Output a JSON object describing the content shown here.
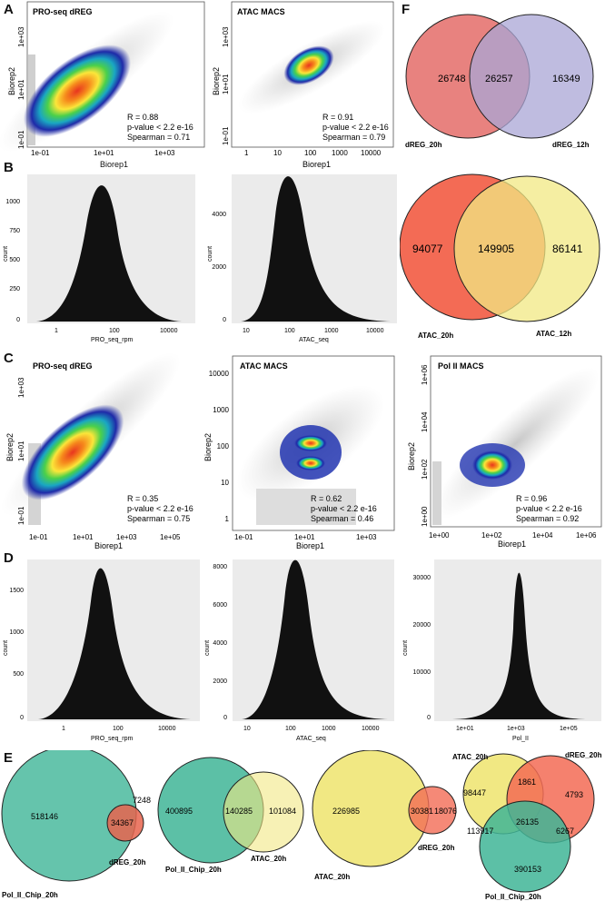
{
  "labels": [
    "A",
    "B",
    "C",
    "D",
    "E",
    "F"
  ],
  "scatter_A": [
    {
      "title": "PRO-seq dREG",
      "xlabel": "Biorep1",
      "ylabel": "Biorep2",
      "xticks": [
        "1e-01",
        "1e+01",
        "1e+03"
      ],
      "yticks": [
        "1e+03",
        "1e+01",
        "1e-01"
      ],
      "stats": [
        "R = 0.88",
        "p-value < 2.2 e-16",
        "Spearman = 0.71"
      ]
    },
    {
      "title": "ATAC MACS",
      "xlabel": "Biorep1",
      "ylabel": "Biorep2",
      "xticks": [
        "1",
        "10",
        "100",
        "1000",
        "10000"
      ],
      "yticks": [
        "1e+03",
        "1e+01",
        "1e-01"
      ],
      "stats": [
        "R = 0.91",
        "p-value < 2.2 e-16",
        "Spearman = 0.79"
      ]
    }
  ],
  "scatter_C": [
    {
      "title": "PRO-seq dREG",
      "xlabel": "Biorep1",
      "ylabel": "Biorep2",
      "xticks": [
        "1e-01",
        "1e+01",
        "1e+03",
        "1e+05"
      ],
      "yticks": [
        "1e+03",
        "1e+01",
        "1e-01"
      ],
      "stats": [
        "R = 0.35",
        "p-value < 2.2 e-16",
        "Spearman = 0.75"
      ]
    },
    {
      "title": "ATAC MACS",
      "xlabel": "Biorep1",
      "ylabel": "Biorep2",
      "xticks": [
        "1e-01",
        "1e+01",
        "1e+03"
      ],
      "yticks": [
        "10000",
        "1000",
        "100",
        "10",
        "1"
      ],
      "stats": [
        "R = 0.62",
        "p-value < 2.2 e-16",
        "Spearman = 0.46"
      ]
    },
    {
      "title": "Pol II MACS",
      "xlabel": "Biorep1",
      "ylabel": "Biorep2",
      "xticks": [
        "1e+00",
        "1e+02",
        "1e+04",
        "1e+06"
      ],
      "yticks": [
        "1e+06",
        "1e+04",
        "1e+02",
        "1e+00"
      ],
      "stats": [
        "R = 0.96",
        "p-value < 2.2 e-16",
        "Spearman = 0.92"
      ]
    }
  ],
  "hist_B": [
    {
      "xlabel": "PRO_seq_rpm",
      "ylabel": "count",
      "xticks": [
        "1",
        "100",
        "10000"
      ],
      "yticks": [
        "1000",
        "750",
        "500",
        "250",
        "0"
      ]
    },
    {
      "xlabel": "ATAC_seq",
      "ylabel": "count",
      "xticks": [
        "10",
        "100",
        "1000",
        "10000"
      ],
      "yticks": [
        "4000",
        "2000",
        "0"
      ]
    }
  ],
  "hist_D": [
    {
      "xlabel": "PRO_seq_rpm",
      "ylabel": "count",
      "xticks": [
        "1",
        "100",
        "10000"
      ],
      "yticks": [
        "1500",
        "1000",
        "500",
        "0"
      ]
    },
    {
      "xlabel": "ATAC_seq",
      "ylabel": "count",
      "xticks": [
        "10",
        "100",
        "1000",
        "10000"
      ],
      "yticks": [
        "8000",
        "6000",
        "4000",
        "2000",
        "0"
      ]
    },
    {
      "xlabel": "Pol_II",
      "ylabel": "count",
      "xticks": [
        "1e+01",
        "1e+03",
        "1e+05"
      ],
      "yticks": [
        "30000",
        "20000",
        "10000",
        "0"
      ]
    }
  ],
  "venn_F1": {
    "left": "26748",
    "mid": "26257",
    "right": "16349",
    "label_left": "dREG_20h",
    "label_right": "dREG_12h"
  },
  "venn_F2": {
    "left": "94077",
    "mid": "149905",
    "right": "86141",
    "label_left": "ATAC_20h",
    "label_right": "ATAC_12h"
  },
  "venn_E1": {
    "left": "518146",
    "mid": "34367",
    "right": "7248",
    "label_left": "Pol_II_Chip_20h",
    "label_right": "dREG_20h"
  },
  "venn_E2": {
    "left": "400895",
    "mid": "140285",
    "right": "101084",
    "label_left": "Pol_II_Chip_20h",
    "label_right": "ATAC_20h"
  },
  "venn_E3": {
    "left": "226985",
    "mid": "30381",
    "right": "18076",
    "label_left": "ATAC_20h",
    "label_right": "dREG_20h"
  },
  "venn_E4": {
    "a": "98447",
    "ab": "1861",
    "b": "4793",
    "center": "26135",
    "ac": "113917",
    "bc": "6267",
    "c": "390153",
    "label_a": "ATAC_20h",
    "label_b": "dREG_20h",
    "label_c": "Pol_II_Chip_20h"
  },
  "colors": {
    "salmon": "#e8827f",
    "lavender": "#a9a6d6",
    "orange_red": "#f36b55",
    "yellow": "#f1e883",
    "teal": "#3fb597",
    "panel_bg": "#ebebeb"
  }
}
